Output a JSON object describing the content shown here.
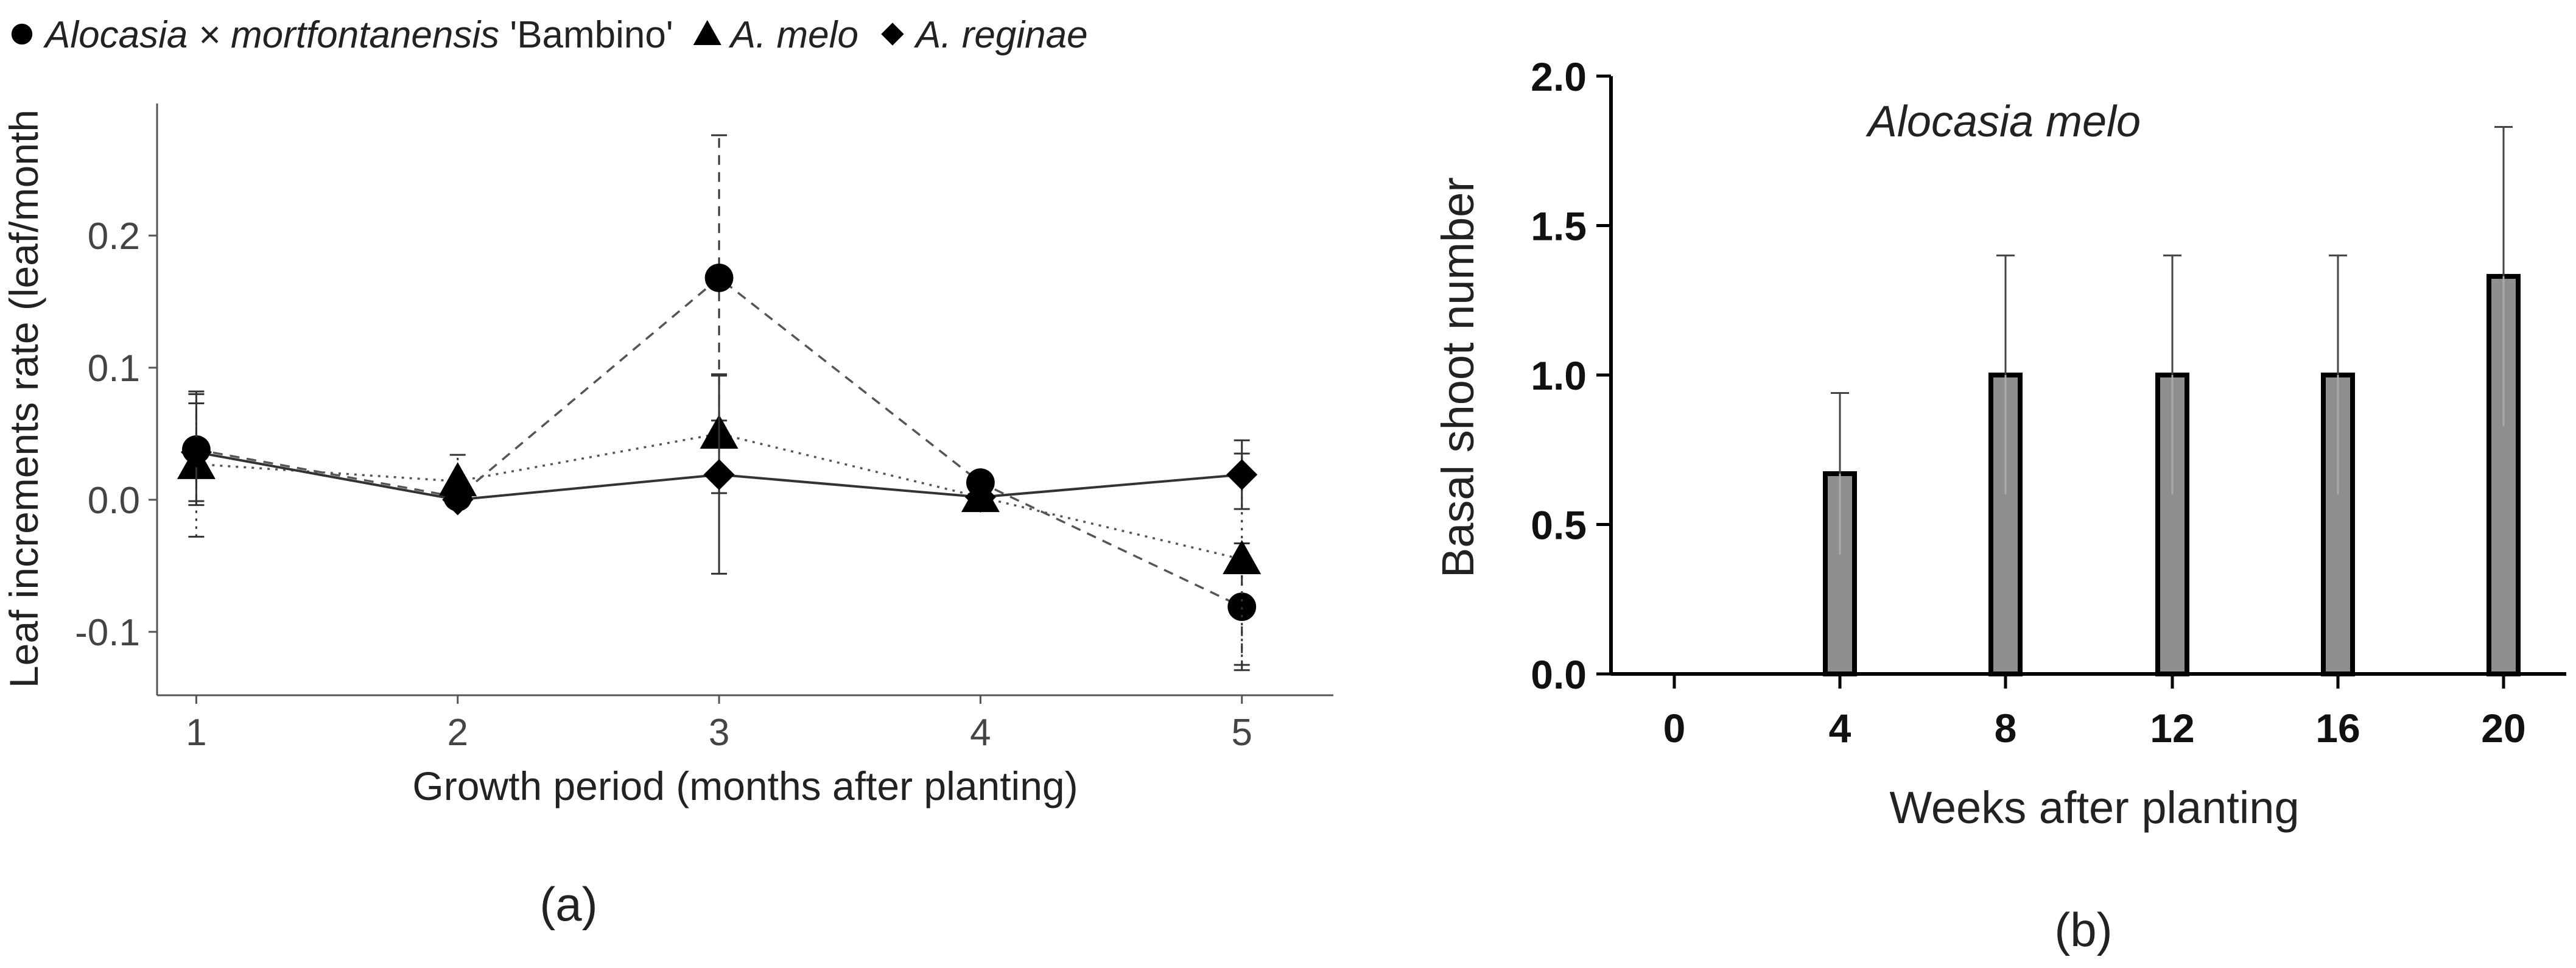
{
  "chart_data": [
    {
      "panel": "(a)",
      "type": "line",
      "title": "",
      "legend": {
        "placement": "top",
        "entries": [
          {
            "italic": "Alocasia × mortfontanensis",
            "plain": " 'Bambino'",
            "marker": "circle"
          },
          {
            "italic": "A. melo",
            "plain": "",
            "marker": "triangle"
          },
          {
            "italic": "A. reginae",
            "plain": "",
            "marker": "diamond"
          }
        ]
      },
      "xlabel": "Growth period (months after planting)",
      "ylabel": "Leaf increments rate (leaf/month",
      "x": [
        1,
        2,
        3,
        4,
        5
      ],
      "xticks": [
        "1",
        "2",
        "3",
        "4",
        "5"
      ],
      "xlim": [
        0.85,
        5.35
      ],
      "yticks": [
        -0.1,
        0.0,
        0.1,
        0.2
      ],
      "ytick_labels": [
        "-0.1",
        "0.0",
        "0.1",
        "0.2"
      ],
      "ylim": [
        -0.148,
        0.3
      ],
      "series": [
        {
          "name": "Alocasia × mortfontanensis 'Bambino'",
          "marker": "circle",
          "line": "dashed",
          "values": [
            0.038,
            0.002,
            0.168,
            0.013,
            -0.081
          ],
          "errors": [
            0.042,
            0.0,
            0.108,
            0.0,
            0.048
          ]
        },
        {
          "name": "A. melo",
          "marker": "triangle",
          "line": "dotted",
          "values": [
            0.027,
            0.014,
            0.05,
            0.002,
            -0.045
          ],
          "errors": [
            0.055,
            0.02,
            0.045,
            0.0,
            0.08
          ]
        },
        {
          "name": "A. reginae",
          "marker": "diamond",
          "line": "solid",
          "values": [
            0.036,
            0.0,
            0.019,
            0.002,
            0.019
          ],
          "errors": [
            0.037,
            0.0,
            0.075,
            0.0,
            0.026
          ]
        }
      ],
      "caption": "(a)"
    },
    {
      "panel": "(b)",
      "type": "bar",
      "title": "Alocasia melo",
      "xlabel": "Weeks after planting",
      "ylabel": "Basal shoot number",
      "categories": [
        "0",
        "4",
        "8",
        "12",
        "16",
        "20"
      ],
      "values": [
        0,
        0.67,
        1.0,
        1.0,
        1.0,
        1.33
      ],
      "errors": [
        0,
        0.27,
        0.4,
        0.4,
        0.4,
        0.5
      ],
      "yticks": [
        "0.0",
        "0.5",
        "1.0",
        "1.5",
        "2.0"
      ],
      "ylim": [
        0,
        2.0
      ],
      "caption": "(b)"
    }
  ]
}
